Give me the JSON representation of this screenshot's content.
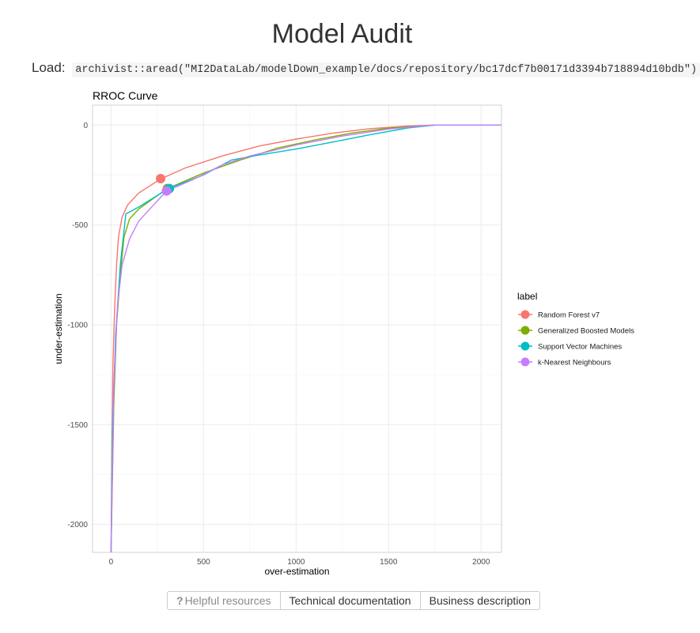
{
  "page": {
    "title": "Model Audit",
    "load_label": "Load:",
    "load_code": "archivist::aread(\"MI2DataLab/modelDown_example/docs/repository/bc17dcf7b00171d3394b718894d10bdb\")"
  },
  "buttons": {
    "helpful_icon": "?",
    "helpful": "Helpful resources",
    "technical": "Technical documentation",
    "business": "Business description"
  },
  "chart_data": {
    "type": "line",
    "title": "RROC Curve",
    "xlabel": "over-estimation",
    "ylabel": "under-estimation",
    "xlim": [
      -100,
      2110
    ],
    "ylim": [
      -2140,
      100
    ],
    "x_ticks": [
      0,
      500,
      1000,
      1500,
      2000
    ],
    "y_ticks": [
      0,
      -500,
      -1000,
      -1500,
      -2000
    ],
    "grid": true,
    "legend": {
      "title": "label",
      "position": "right"
    },
    "series": [
      {
        "name": "Random Forest v7",
        "color": "#F8766D",
        "points": [
          [
            0,
            -2140
          ],
          [
            5,
            -1600
          ],
          [
            10,
            -1200
          ],
          [
            20,
            -900
          ],
          [
            30,
            -700
          ],
          [
            40,
            -560
          ],
          [
            60,
            -460
          ],
          [
            90,
            -400
          ],
          [
            150,
            -340
          ],
          [
            268,
            -270
          ],
          [
            400,
            -215
          ],
          [
            600,
            -155
          ],
          [
            800,
            -105
          ],
          [
            1000,
            -70
          ],
          [
            1200,
            -40
          ],
          [
            1400,
            -18
          ],
          [
            1600,
            -5
          ],
          [
            1750,
            0
          ],
          [
            2110,
            0
          ]
        ],
        "marker": [
          268,
          -268
        ]
      },
      {
        "name": "Generalized Boosted Models",
        "color": "#7CAE00",
        "points": [
          [
            0,
            -2140
          ],
          [
            15,
            -1400
          ],
          [
            30,
            -1000
          ],
          [
            50,
            -750
          ],
          [
            70,
            -560
          ],
          [
            100,
            -470
          ],
          [
            150,
            -420
          ],
          [
            300,
            -320
          ],
          [
            500,
            -240
          ],
          [
            700,
            -175
          ],
          [
            900,
            -115
          ],
          [
            1100,
            -75
          ],
          [
            1300,
            -40
          ],
          [
            1500,
            -15
          ],
          [
            1700,
            -3
          ],
          [
            1750,
            0
          ],
          [
            2110,
            0
          ]
        ],
        "marker": [
          305,
          -318
        ]
      },
      {
        "name": "Support Vector Machines",
        "color": "#00BFC4",
        "points": [
          [
            0,
            -2140
          ],
          [
            8,
            -1500
          ],
          [
            25,
            -1050
          ],
          [
            50,
            -700
          ],
          [
            80,
            -445
          ],
          [
            150,
            -410
          ],
          [
            310,
            -318
          ],
          [
            500,
            -250
          ],
          [
            650,
            -175
          ],
          [
            800,
            -150
          ],
          [
            1000,
            -120
          ],
          [
            1200,
            -85
          ],
          [
            1400,
            -48
          ],
          [
            1600,
            -15
          ],
          [
            1750,
            0
          ],
          [
            2110,
            0
          ]
        ],
        "marker": [
          315,
          -318
        ]
      },
      {
        "name": "k-Nearest Neighbours",
        "color": "#C77CFF",
        "points": [
          [
            0,
            -2140
          ],
          [
            15,
            -1300
          ],
          [
            35,
            -900
          ],
          [
            60,
            -700
          ],
          [
            100,
            -570
          ],
          [
            150,
            -480
          ],
          [
            230,
            -400
          ],
          [
            300,
            -330
          ],
          [
            450,
            -270
          ],
          [
            600,
            -200
          ],
          [
            750,
            -155
          ],
          [
            1000,
            -100
          ],
          [
            1250,
            -55
          ],
          [
            1500,
            -20
          ],
          [
            1700,
            -3
          ],
          [
            1750,
            0
          ],
          [
            2110,
            0
          ]
        ],
        "marker": [
          300,
          -330
        ]
      }
    ]
  }
}
